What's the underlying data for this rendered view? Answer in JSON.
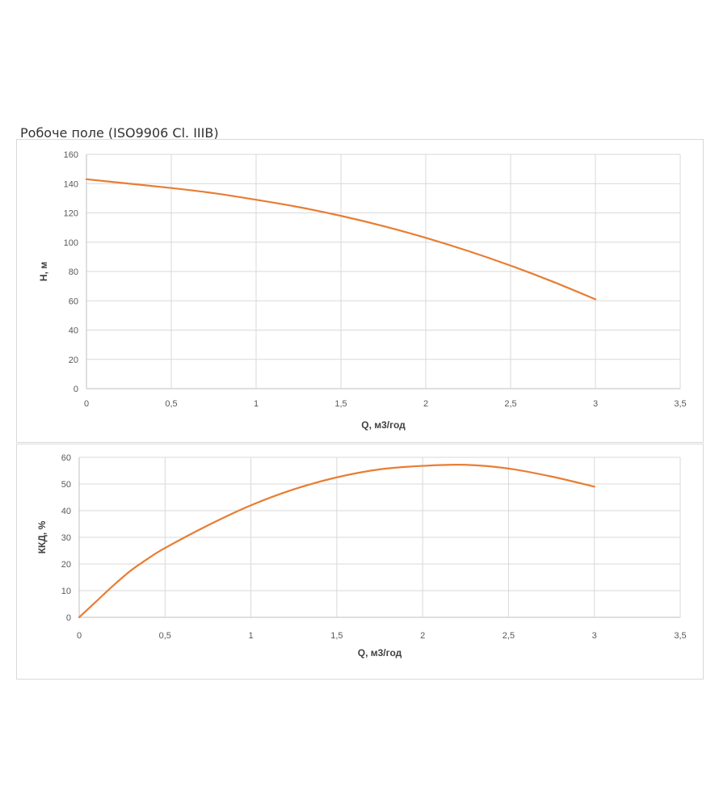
{
  "page_title": "Робоче поле (ISO9906 Cl. IIIB)",
  "colors": {
    "curve": "#e87d33",
    "grid": "#d9d9d9",
    "axis": "#bfbfbf",
    "text": "#595959"
  },
  "chart_data": [
    {
      "type": "line",
      "xlabel": "Q, м3/год",
      "ylabel": "H, м",
      "xlim": [
        0,
        3.5
      ],
      "ylim": [
        0,
        160
      ],
      "x_ticks": [
        "0",
        "0,5",
        "1",
        "1,5",
        "2",
        "2,5",
        "3",
        "3,5"
      ],
      "y_ticks": [
        "0",
        "20",
        "40",
        "60",
        "80",
        "100",
        "120",
        "140",
        "160"
      ],
      "grid": true,
      "series": [
        {
          "x": [
            0,
            0.25,
            0.5,
            0.75,
            1,
            1.25,
            1.5,
            1.75,
            2,
            2.25,
            2.5,
            2.75,
            3
          ],
          "values": [
            143,
            140,
            137,
            133.5,
            129,
            124,
            118,
            111,
            103,
            94,
            84,
            73,
            61
          ]
        }
      ]
    },
    {
      "type": "line",
      "xlabel": "Q, м3/год",
      "ylabel": "ККД, %",
      "xlim": [
        0,
        3.5
      ],
      "ylim": [
        0,
        60
      ],
      "x_ticks": [
        "0",
        "0,5",
        "1",
        "1,5",
        "2",
        "2,5",
        "3",
        "3,5"
      ],
      "y_ticks": [
        "0",
        "10",
        "20",
        "30",
        "40",
        "50",
        "60"
      ],
      "grid": true,
      "series": [
        {
          "x": [
            0,
            0.1,
            0.2,
            0.3,
            0.4,
            0.5,
            0.75,
            1,
            1.25,
            1.5,
            1.75,
            2,
            2.25,
            2.5,
            2.75,
            3
          ],
          "values": [
            0,
            6,
            12,
            17.5,
            22,
            26,
            34.5,
            42,
            48,
            52.5,
            55.5,
            56.8,
            57.2,
            55.8,
            52.8,
            49
          ]
        }
      ]
    }
  ]
}
